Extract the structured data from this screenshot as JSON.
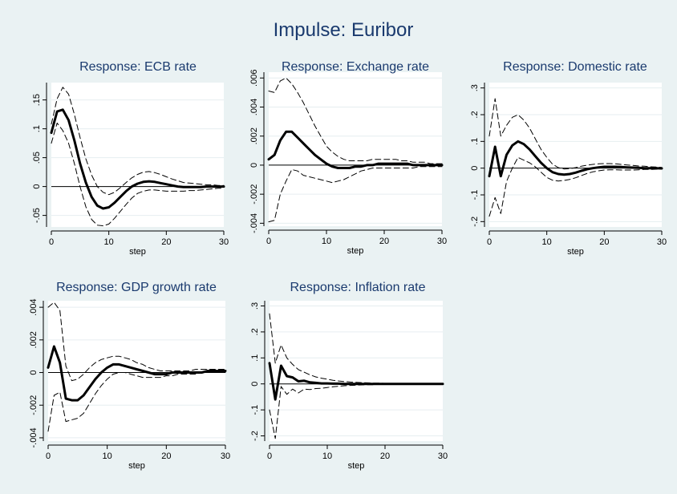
{
  "figure": {
    "title": "Impulse: Euribor",
    "background": "#eaf2f3",
    "plot_background": "#ffffff",
    "title_color": "#1a3a6e",
    "grid_color": "#e6eef0"
  },
  "chart_data": [
    {
      "type": "line",
      "title": "Response: ECB rate",
      "xlabel": "step",
      "ylabel": "",
      "xlim": [
        0,
        30
      ],
      "ylim": [
        -0.07,
        0.18
      ],
      "xticks": [
        0,
        10,
        20,
        30
      ],
      "yticks": [
        -0.05,
        0,
        0.05,
        0.1,
        0.15
      ],
      "ytick_labels": [
        "-.05",
        "0",
        ".05",
        ".1",
        ".15"
      ],
      "grid": true,
      "zero_line": true,
      "x": [
        0,
        1,
        2,
        3,
        4,
        5,
        6,
        7,
        8,
        9,
        10,
        11,
        12,
        13,
        14,
        15,
        16,
        17,
        18,
        19,
        20,
        21,
        22,
        23,
        24,
        25,
        26,
        27,
        28,
        29,
        30
      ],
      "series": [
        {
          "role": "irf",
          "style": "solid",
          "values": [
            0.093,
            0.13,
            0.133,
            0.115,
            0.08,
            0.04,
            0.007,
            -0.018,
            -0.033,
            -0.038,
            -0.036,
            -0.028,
            -0.018,
            -0.008,
            0.0,
            0.005,
            0.008,
            0.009,
            0.008,
            0.006,
            0.004,
            0.002,
            0.0,
            -0.001,
            -0.001,
            -0.001,
            -0.001,
            0.0,
            0.0,
            0.0,
            0.0
          ]
        },
        {
          "role": "upper",
          "style": "dashed",
          "values": [
            0.108,
            0.152,
            0.172,
            0.16,
            0.125,
            0.085,
            0.048,
            0.02,
            0.0,
            -0.01,
            -0.014,
            -0.01,
            -0.002,
            0.007,
            0.015,
            0.021,
            0.025,
            0.026,
            0.024,
            0.021,
            0.017,
            0.013,
            0.01,
            0.007,
            0.006,
            0.005,
            0.004,
            0.003,
            0.003,
            0.002,
            0.002
          ]
        },
        {
          "role": "lower",
          "style": "dashed",
          "values": [
            0.075,
            0.11,
            0.097,
            0.075,
            0.04,
            0.0,
            -0.035,
            -0.057,
            -0.067,
            -0.068,
            -0.065,
            -0.055,
            -0.043,
            -0.031,
            -0.02,
            -0.012,
            -0.008,
            -0.006,
            -0.006,
            -0.007,
            -0.008,
            -0.008,
            -0.008,
            -0.008,
            -0.007,
            -0.007,
            -0.006,
            -0.005,
            -0.004,
            -0.003,
            -0.003
          ]
        }
      ]
    },
    {
      "type": "line",
      "title": "Response: Exchange rate",
      "xlabel": "step",
      "ylabel": "",
      "xlim": [
        0,
        30
      ],
      "ylim": [
        -0.0042,
        0.0064
      ],
      "xticks": [
        0,
        10,
        20,
        30
      ],
      "yticks": [
        -0.004,
        -0.002,
        0,
        0.002,
        0.004,
        0.006
      ],
      "ytick_labels": [
        "-.004",
        "-.002",
        "0",
        ".002",
        ".004",
        ".006"
      ],
      "grid": true,
      "zero_line": true,
      "x": [
        0,
        1,
        2,
        3,
        4,
        5,
        6,
        7,
        8,
        9,
        10,
        11,
        12,
        13,
        14,
        15,
        16,
        17,
        18,
        19,
        20,
        21,
        22,
        23,
        24,
        25,
        26,
        27,
        28,
        29,
        30
      ],
      "series": [
        {
          "role": "irf",
          "style": "solid",
          "values": [
            0.0004,
            0.0007,
            0.0017,
            0.0023,
            0.0023,
            0.0019,
            0.0015,
            0.0011,
            0.0007,
            0.0004,
            0.0001,
            -0.0001,
            -0.0002,
            -0.0002,
            -0.0002,
            -0.0001,
            -0.0001,
            0.0,
            0.0,
            0.0001,
            0.0001,
            0.0001,
            0.0001,
            0.0001,
            0.0001,
            0.0,
            0.0,
            0.0,
            0.0,
            0.0,
            0.0
          ]
        },
        {
          "role": "upper",
          "style": "dashed",
          "values": [
            0.0051,
            0.005,
            0.0058,
            0.006,
            0.0056,
            0.005,
            0.0043,
            0.0035,
            0.0027,
            0.002,
            0.0013,
            0.0009,
            0.0006,
            0.0004,
            0.0003,
            0.0003,
            0.0003,
            0.0003,
            0.0004,
            0.0004,
            0.0004,
            0.0004,
            0.0004,
            0.0003,
            0.0003,
            0.0002,
            0.0002,
            0.0002,
            0.0001,
            0.0001,
            0.0001
          ]
        },
        {
          "role": "lower",
          "style": "dashed",
          "values": [
            -0.0039,
            -0.0038,
            -0.002,
            -0.0011,
            -0.0003,
            -0.0004,
            -0.0007,
            -0.0008,
            -0.0009,
            -0.001,
            -0.0011,
            -0.0012,
            -0.0011,
            -0.001,
            -0.0008,
            -0.0006,
            -0.0004,
            -0.0003,
            -0.0002,
            -0.0002,
            -0.0002,
            -0.0002,
            -0.0002,
            -0.0002,
            -0.0002,
            -0.0002,
            -0.0001,
            -0.0001,
            -0.0001,
            -0.0001,
            -0.0001
          ]
        }
      ]
    },
    {
      "type": "line",
      "title": "Response: Domestic rate",
      "xlabel": "step",
      "ylabel": "",
      "xlim": [
        0,
        30
      ],
      "ylim": [
        -0.22,
        0.32
      ],
      "xticks": [
        0,
        10,
        20,
        30
      ],
      "yticks": [
        -0.2,
        -0.1,
        0,
        0.1,
        0.2,
        0.3
      ],
      "ytick_labels": [
        "-.2",
        "-.1",
        "0",
        ".1",
        ".2",
        ".3"
      ],
      "grid": true,
      "zero_line": true,
      "x": [
        0,
        1,
        2,
        3,
        4,
        5,
        6,
        7,
        8,
        9,
        10,
        11,
        12,
        13,
        14,
        15,
        16,
        17,
        18,
        19,
        20,
        21,
        22,
        23,
        24,
        25,
        26,
        27,
        28,
        29,
        30
      ],
      "series": [
        {
          "role": "irf",
          "style": "solid",
          "values": [
            -0.03,
            0.08,
            -0.03,
            0.05,
            0.085,
            0.1,
            0.09,
            0.07,
            0.045,
            0.02,
            0.0,
            -0.015,
            -0.022,
            -0.024,
            -0.022,
            -0.017,
            -0.01,
            -0.004,
            0.0,
            0.003,
            0.005,
            0.005,
            0.005,
            0.004,
            0.003,
            0.002,
            0.001,
            0.0,
            0.0,
            0.0,
            -0.001
          ]
        },
        {
          "role": "upper",
          "style": "dashed",
          "values": [
            0.12,
            0.26,
            0.12,
            0.16,
            0.19,
            0.2,
            0.18,
            0.15,
            0.11,
            0.07,
            0.04,
            0.015,
            0.002,
            -0.003,
            -0.002,
            0.002,
            0.007,
            0.011,
            0.014,
            0.016,
            0.017,
            0.017,
            0.016,
            0.014,
            0.012,
            0.01,
            0.008,
            0.007,
            0.005,
            0.004,
            0.003
          ]
        },
        {
          "role": "lower",
          "style": "dashed",
          "values": [
            -0.18,
            -0.11,
            -0.17,
            -0.05,
            0.0,
            0.04,
            0.03,
            0.02,
            0.005,
            -0.015,
            -0.035,
            -0.045,
            -0.048,
            -0.046,
            -0.042,
            -0.036,
            -0.028,
            -0.02,
            -0.014,
            -0.01,
            -0.007,
            -0.006,
            -0.006,
            -0.007,
            -0.007,
            -0.007,
            -0.006,
            -0.005,
            -0.005,
            -0.004,
            -0.004
          ]
        }
      ]
    },
    {
      "type": "line",
      "title": "Response: GDP growth rate",
      "xlabel": "step",
      "ylabel": "",
      "xlim": [
        0,
        30
      ],
      "ylim": [
        -0.0042,
        0.0044
      ],
      "xticks": [
        0,
        10,
        20,
        30
      ],
      "yticks": [
        -0.004,
        -0.002,
        0,
        0.002,
        0.004
      ],
      "ytick_labels": [
        "-.004",
        "-.002",
        "0",
        ".002",
        ".004"
      ],
      "grid": true,
      "zero_line": true,
      "x": [
        0,
        1,
        2,
        3,
        4,
        5,
        6,
        7,
        8,
        9,
        10,
        11,
        12,
        13,
        14,
        15,
        16,
        17,
        18,
        19,
        20,
        21,
        22,
        23,
        24,
        25,
        26,
        27,
        28,
        29,
        30
      ],
      "series": [
        {
          "role": "irf",
          "style": "solid",
          "values": [
            0.0003,
            0.0016,
            0.0006,
            -0.0016,
            -0.0017,
            -0.0017,
            -0.0014,
            -0.0009,
            -0.0004,
            0.0,
            0.0003,
            0.0005,
            0.0005,
            0.0004,
            0.0003,
            0.0002,
            0.0001,
            0.0,
            -0.0001,
            -0.0001,
            -0.0001,
            0.0,
            0.0,
            0.0,
            0.0,
            0.0,
            0.0,
            0.0001,
            0.0001,
            0.0001,
            0.0001
          ]
        },
        {
          "role": "upper",
          "style": "dashed",
          "values": [
            0.004,
            0.0043,
            0.0038,
            0.0004,
            -0.0005,
            -0.0004,
            -0.0001,
            0.0003,
            0.0006,
            0.0008,
            0.0009,
            0.001,
            0.001,
            0.0009,
            0.0008,
            0.0006,
            0.0005,
            0.0003,
            0.0002,
            0.0001,
            0.0001,
            0.0001,
            0.0001,
            0.0001,
            0.0001,
            0.0002,
            0.0002,
            0.0002,
            0.0002,
            0.0002,
            0.0002
          ]
        },
        {
          "role": "lower",
          "style": "dashed",
          "values": [
            -0.0036,
            -0.0014,
            -0.0012,
            -0.003,
            -0.0029,
            -0.0028,
            -0.0025,
            -0.0019,
            -0.0013,
            -0.0008,
            -0.0004,
            -0.0001,
            0.0,
            0.0,
            -0.0001,
            -0.0002,
            -0.0003,
            -0.0003,
            -0.0003,
            -0.0003,
            -0.0002,
            -0.0002,
            -0.0001,
            -0.0001,
            -0.0001,
            -0.0001,
            0.0,
            0.0,
            0.0,
            0.0,
            0.0
          ]
        }
      ]
    },
    {
      "type": "line",
      "title": "Response: Inflation rate",
      "xlabel": "step",
      "ylabel": "",
      "xlim": [
        0,
        30
      ],
      "ylim": [
        -0.22,
        0.32
      ],
      "xticks": [
        0,
        10,
        20,
        30
      ],
      "yticks": [
        -0.2,
        -0.1,
        0,
        0.1,
        0.2,
        0.3
      ],
      "ytick_labels": [
        "-.2",
        "-.1",
        "0",
        ".1",
        ".2",
        ".3"
      ],
      "grid": true,
      "zero_line": true,
      "x": [
        0,
        1,
        2,
        3,
        4,
        5,
        6,
        7,
        8,
        9,
        10,
        11,
        12,
        13,
        14,
        15,
        16,
        17,
        18,
        19,
        20,
        21,
        22,
        23,
        24,
        25,
        26,
        27,
        28,
        29,
        30
      ],
      "series": [
        {
          "role": "irf",
          "style": "solid",
          "values": [
            0.08,
            -0.06,
            0.07,
            0.03,
            0.025,
            0.01,
            0.012,
            0.006,
            0.004,
            0.002,
            0.002,
            0.001,
            0.001,
            0.0,
            0.0,
            0.0,
            0.0,
            0.0,
            0.0,
            0.0,
            0.0,
            0.0,
            0.0,
            0.0,
            0.0,
            0.0,
            0.0,
            0.0,
            0.0,
            0.0,
            0.0
          ]
        },
        {
          "role": "upper",
          "style": "dashed",
          "values": [
            0.27,
            0.08,
            0.15,
            0.1,
            0.075,
            0.055,
            0.045,
            0.035,
            0.027,
            0.022,
            0.018,
            0.014,
            0.011,
            0.009,
            0.007,
            0.006,
            0.005,
            0.004,
            0.003,
            0.003,
            0.002,
            0.002,
            0.002,
            0.001,
            0.001,
            0.001,
            0.001,
            0.001,
            0.001,
            0.001,
            0.001
          ]
        },
        {
          "role": "lower",
          "style": "dashed",
          "values": [
            -0.1,
            -0.21,
            -0.01,
            -0.04,
            -0.02,
            -0.035,
            -0.02,
            -0.022,
            -0.018,
            -0.017,
            -0.014,
            -0.011,
            -0.009,
            -0.007,
            -0.006,
            -0.005,
            -0.004,
            -0.003,
            -0.003,
            -0.002,
            -0.002,
            -0.002,
            -0.002,
            -0.001,
            -0.001,
            -0.001,
            -0.001,
            -0.001,
            -0.001,
            -0.001,
            -0.001
          ]
        }
      ]
    }
  ]
}
